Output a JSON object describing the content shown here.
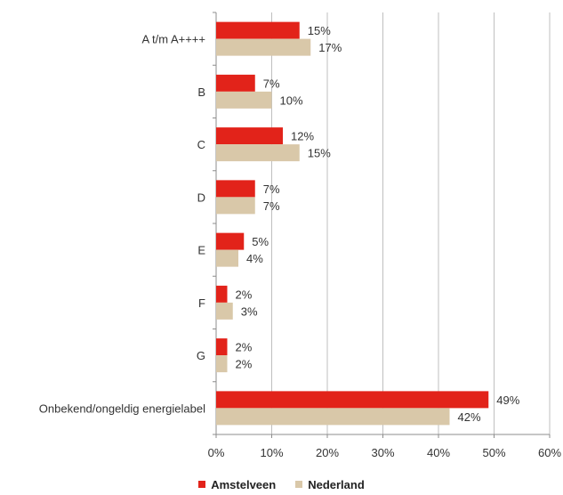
{
  "chart_data": {
    "type": "bar",
    "orientation": "horizontal",
    "categories": [
      "A t/m A++++",
      "B",
      "C",
      "D",
      "E",
      "F",
      "G",
      "Onbekend/ongeldig energielabel"
    ],
    "series": [
      {
        "name": "Amstelveen",
        "color": "#e2231a",
        "values": [
          15,
          7,
          12,
          7,
          5,
          2,
          2,
          49
        ],
        "labels": [
          "15%",
          "7%",
          "12%",
          "7%",
          "5%",
          "2%",
          "2%",
          "49%"
        ]
      },
      {
        "name": "Nederland",
        "color": "#d9c8a9",
        "values": [
          17,
          10,
          15,
          7,
          4,
          3,
          2,
          42
        ],
        "labels": [
          "17%",
          "10%",
          "15%",
          "7%",
          "4%",
          "3%",
          "2%",
          "42%"
        ]
      }
    ],
    "x_ticks": [
      0,
      10,
      20,
      30,
      40,
      50,
      60
    ],
    "x_tick_labels": [
      "0%",
      "10%",
      "20%",
      "30%",
      "40%",
      "50%",
      "60%"
    ],
    "xlim": [
      0,
      60
    ],
    "grid": "vertical",
    "legend_position": "bottom"
  }
}
